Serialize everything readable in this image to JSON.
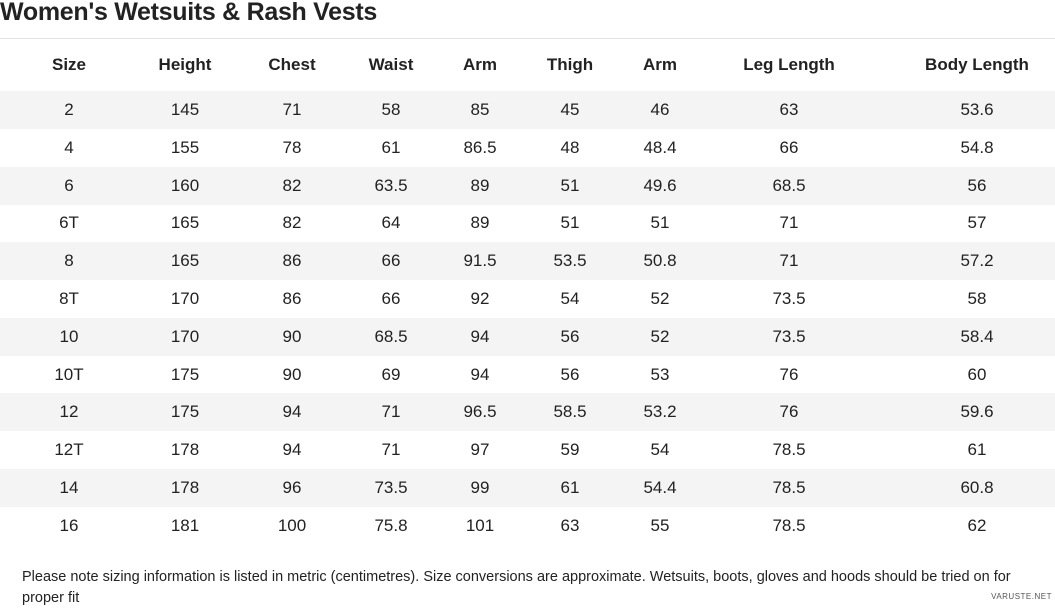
{
  "header": {
    "title": "Women's Wetsuits & Rash Vests"
  },
  "table": {
    "columns": [
      "Size",
      "Height",
      "Chest",
      "Waist",
      "Arm",
      "Thigh",
      "Arm",
      "Leg Length",
      "Body Length"
    ],
    "rows": [
      [
        "2",
        "145",
        "71",
        "58",
        "85",
        "45",
        "46",
        "63",
        "53.6"
      ],
      [
        "4",
        "155",
        "78",
        "61",
        "86.5",
        "48",
        "48.4",
        "66",
        "54.8"
      ],
      [
        "6",
        "160",
        "82",
        "63.5",
        "89",
        "51",
        "49.6",
        "68.5",
        "56"
      ],
      [
        "6T",
        "165",
        "82",
        "64",
        "89",
        "51",
        "51",
        "71",
        "57"
      ],
      [
        "8",
        "165",
        "86",
        "66",
        "91.5",
        "53.5",
        "50.8",
        "71",
        "57.2"
      ],
      [
        "8T",
        "170",
        "86",
        "66",
        "92",
        "54",
        "52",
        "73.5",
        "58"
      ],
      [
        "10",
        "170",
        "90",
        "68.5",
        "94",
        "56",
        "52",
        "73.5",
        "58.4"
      ],
      [
        "10T",
        "175",
        "90",
        "69",
        "94",
        "56",
        "53",
        "76",
        "60"
      ],
      [
        "12",
        "175",
        "94",
        "71",
        "96.5",
        "58.5",
        "53.2",
        "76",
        "59.6"
      ],
      [
        "12T",
        "178",
        "94",
        "71",
        "97",
        "59",
        "54",
        "78.5",
        "61"
      ],
      [
        "14",
        "178",
        "96",
        "73.5",
        "99",
        "61",
        "54.4",
        "78.5",
        "60.8"
      ],
      [
        "16",
        "181",
        "100",
        "75.8",
        "101",
        "63",
        "55",
        "78.5",
        "62"
      ]
    ]
  },
  "note": "Please note sizing information is listed in metric (centimetres). Size conversions are approximate. Wetsuits, boots, gloves and hoods should be tried on for proper fit",
  "watermark": "VARUSTE.NET"
}
